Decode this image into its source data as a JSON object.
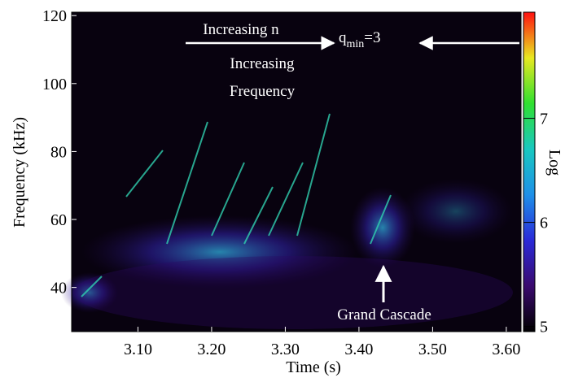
{
  "chart_data": {
    "type": "spectrogram",
    "xlabel": "Time (s)",
    "ylabel": "Frequency (kHz)",
    "colorbar_label": "Log",
    "xlim": [
      3.01,
      3.62
    ],
    "xticks": [
      {
        "value": 3.1,
        "label": "3.10"
      },
      {
        "value": 3.2,
        "label": "3.20"
      },
      {
        "value": 3.3,
        "label": "3.30"
      },
      {
        "value": 3.4,
        "label": "3.40"
      },
      {
        "value": 3.5,
        "label": "3.50"
      },
      {
        "value": 3.6,
        "label": "3.60"
      }
    ],
    "ylim": [
      27,
      121
    ],
    "yticks": [
      40,
      60,
      80,
      100,
      120
    ],
    "clim": [
      4.95,
      8.02
    ],
    "cticks": [
      5,
      6,
      7
    ],
    "colormap": [
      "#000000",
      "#3a0a6e",
      "#2a2ad8",
      "#1e90e8",
      "#18c8c0",
      "#30e030",
      "#e8e820",
      "#ff1010"
    ],
    "annotations": {
      "increasing_n": "Increasing n",
      "increasing_frequency": [
        "Increasing",
        "Frequency"
      ],
      "qmin": {
        "base": "q",
        "sub": "min",
        "rest": "=3"
      },
      "grand_cascade": "Grand Cascade"
    }
  }
}
